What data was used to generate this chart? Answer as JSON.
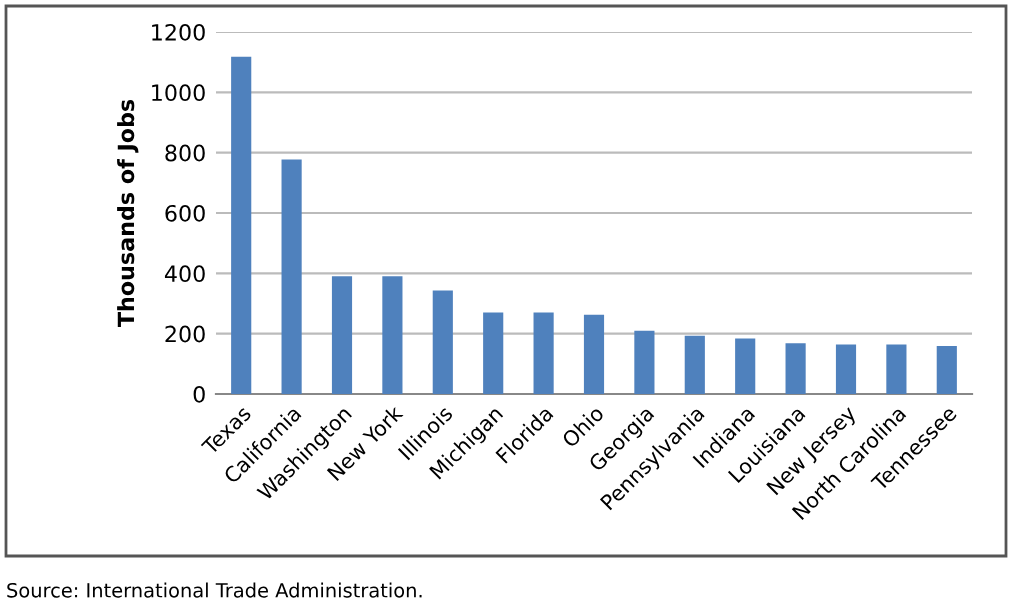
{
  "chart_data": {
    "type": "bar",
    "ylabel": "Thousands of Jobs",
    "categories": [
      "Texas",
      "California",
      "Washington",
      "New York",
      "Illinois",
      "Michigan",
      "Florida",
      "Ohio",
      "Georgia",
      "Pennsylvania",
      "Indiana",
      "Louisiana",
      "New Jersey",
      "North Carolina",
      "Tennessee"
    ],
    "values": [
      1118,
      777,
      390,
      390,
      343,
      270,
      270,
      263,
      210,
      193,
      184,
      168,
      164,
      164,
      159
    ],
    "color": "#4f81bd",
    "ylim": [
      0,
      1200
    ],
    "yticks": [
      0,
      200,
      400,
      600,
      800,
      1000,
      1200
    ],
    "grid": "y",
    "annotations": [
      "Source: International Trade Administration."
    ]
  }
}
